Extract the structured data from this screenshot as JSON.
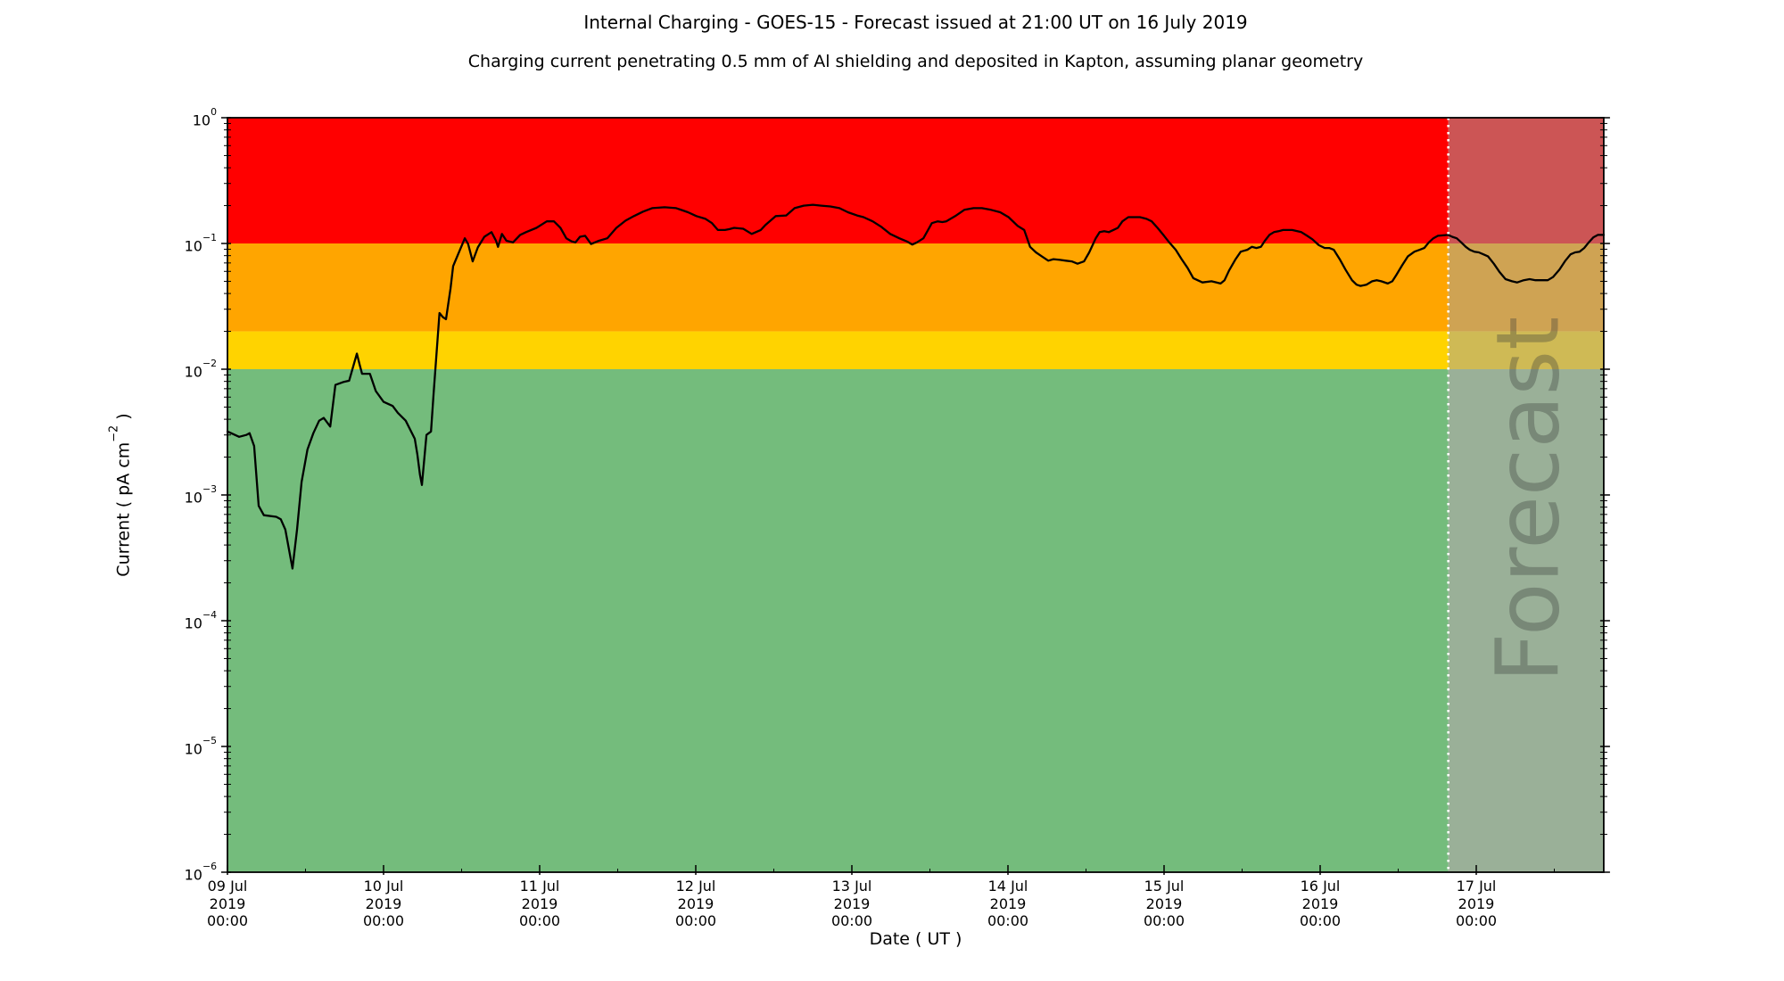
{
  "figure": {
    "title": "Internal Charging - GOES-15 - Forecast issued at 21:00 UT on 16 July 2019",
    "subtitle": "Charging current penetrating 0.5 mm of Al shielding and deposited in Kapton, assuming planar geometry",
    "xlabel": "Date ( UT )",
    "ylabel": {
      "prefix": "Current ( pA cm",
      "exponent": "−2",
      "suffix": " )"
    }
  },
  "axes": {
    "x_tick_labels": [
      {
        "day": "09 Jul",
        "year": "2019",
        "time": "00:00"
      },
      {
        "day": "10 Jul",
        "year": "2019",
        "time": "00:00"
      },
      {
        "day": "11 Jul",
        "year": "2019",
        "time": "00:00"
      },
      {
        "day": "12 Jul",
        "year": "2019",
        "time": "00:00"
      },
      {
        "day": "13 Jul",
        "year": "2019",
        "time": "00:00"
      },
      {
        "day": "14 Jul",
        "year": "2019",
        "time": "00:00"
      },
      {
        "day": "15 Jul",
        "year": "2019",
        "time": "00:00"
      },
      {
        "day": "16 Jul",
        "year": "2019",
        "time": "00:00"
      },
      {
        "day": "17 Jul",
        "year": "2019",
        "time": "00:00"
      }
    ],
    "y_tick_exponents": [
      0,
      -1,
      -2,
      -3,
      -4,
      -5,
      -6
    ]
  },
  "forecast": {
    "label": "Forecast",
    "start_hours": 187.7,
    "boundary_line_color": "#ffffff",
    "text_color": "rgba(55,60,55,0.34)"
  },
  "colors": {
    "background": "#ffffff",
    "axis": "#000000",
    "line": "#000000",
    "bands": {
      "red": "#ff0000",
      "orange": "#ffa500",
      "yellow": "#ffd300",
      "green": "#74bc7c"
    },
    "forecast_bands": {
      "red": "#cc5555",
      "orange": "#cfa353",
      "yellow": "#cfba55",
      "green": "#9ab098"
    }
  },
  "chart_data": {
    "type": "line",
    "title": "Internal Charging - GOES-15 - Forecast issued at 21:00 UT on 16 July 2019",
    "subtitle": "Charging current penetrating 0.5 mm of Al shielding and deposited in Kapton, assuming planar geometry",
    "xlabel": "Date ( UT )",
    "ylabel": "Current ( pA cm^-2 )",
    "x_unit": "hours since 09 Jul 2019 00:00 UT",
    "xlim": [
      0,
      211.6
    ],
    "y_scale": "log",
    "ylim": [
      1e-06,
      1
    ],
    "grid": false,
    "legend": false,
    "bands": [
      {
        "key": "red",
        "label": "red alert level",
        "vmin": 0.1,
        "vmax": 1
      },
      {
        "key": "orange",
        "label": "orange alert level",
        "vmin": 0.02,
        "vmax": 0.1
      },
      {
        "key": "yellow",
        "label": "yellow alert level",
        "vmin": 0.01,
        "vmax": 0.02
      },
      {
        "key": "green",
        "label": "quiet level",
        "vmin": 1e-06,
        "vmax": 0.01
      }
    ],
    "forecast_start": 187.7,
    "series": [
      {
        "name": "charging current",
        "points": [
          [
            0,
            0.0032
          ],
          [
            1.8,
            0.0029
          ],
          [
            2.9,
            0.003
          ],
          [
            3.4,
            0.0031
          ],
          [
            4.1,
            0.00245
          ],
          [
            4.8,
            0.00082
          ],
          [
            5.6,
            0.00069
          ],
          [
            7.5,
            0.00067
          ],
          [
            8.2,
            0.00064
          ],
          [
            8.9,
            0.00053
          ],
          [
            10,
            0.00026
          ],
          [
            10.7,
            0.00053
          ],
          [
            11.4,
            0.00127
          ],
          [
            12.3,
            0.0023
          ],
          [
            13.2,
            0.0031
          ],
          [
            14.1,
            0.0039
          ],
          [
            14.8,
            0.0041
          ],
          [
            15.8,
            0.0035
          ],
          [
            16.6,
            0.0075
          ],
          [
            17.8,
            0.0079
          ],
          [
            18.7,
            0.0081
          ],
          [
            19.9,
            0.0133
          ],
          [
            20.3,
            0.011
          ],
          [
            20.7,
            0.0092
          ],
          [
            21.9,
            0.0092
          ],
          [
            22.8,
            0.0067
          ],
          [
            24,
            0.0055
          ],
          [
            25.4,
            0.0051
          ],
          [
            26.2,
            0.0045
          ],
          [
            27.4,
            0.0039
          ],
          [
            28.8,
            0.0028
          ],
          [
            29.2,
            0.0021
          ],
          [
            29.6,
            0.00145
          ],
          [
            29.9,
            0.0012
          ],
          [
            30.6,
            0.003
          ],
          [
            31.3,
            0.0032
          ],
          [
            31.7,
            0.0064
          ],
          [
            32.6,
            0.028
          ],
          [
            33.1,
            0.026
          ],
          [
            33.6,
            0.025
          ],
          [
            34.3,
            0.044
          ],
          [
            34.7,
            0.066
          ],
          [
            36.5,
            0.11
          ],
          [
            37,
            0.099
          ],
          [
            37.7,
            0.072
          ],
          [
            38.5,
            0.093
          ],
          [
            39.5,
            0.113
          ],
          [
            40.6,
            0.123
          ],
          [
            41.3,
            0.105
          ],
          [
            41.6,
            0.094
          ],
          [
            42.2,
            0.119
          ],
          [
            42.9,
            0.105
          ],
          [
            43.9,
            0.102
          ],
          [
            45,
            0.117
          ],
          [
            45.9,
            0.123
          ],
          [
            47.5,
            0.133
          ],
          [
            49.1,
            0.15
          ],
          [
            50.2,
            0.15
          ],
          [
            51.2,
            0.133
          ],
          [
            52.1,
            0.11
          ],
          [
            52.9,
            0.104
          ],
          [
            53.5,
            0.102
          ],
          [
            54.2,
            0.113
          ],
          [
            55,
            0.115
          ],
          [
            55.9,
            0.099
          ],
          [
            57.1,
            0.105
          ],
          [
            58.4,
            0.11
          ],
          [
            59.8,
            0.133
          ],
          [
            61.2,
            0.152
          ],
          [
            62.5,
            0.165
          ],
          [
            63.9,
            0.179
          ],
          [
            65.3,
            0.191
          ],
          [
            67.2,
            0.194
          ],
          [
            69,
            0.191
          ],
          [
            70.8,
            0.177
          ],
          [
            72.1,
            0.165
          ],
          [
            73.5,
            0.157
          ],
          [
            74.5,
            0.145
          ],
          [
            75.4,
            0.128
          ],
          [
            76.5,
            0.128
          ],
          [
            77.2,
            0.13
          ],
          [
            77.9,
            0.133
          ],
          [
            79.3,
            0.131
          ],
          [
            80.6,
            0.119
          ],
          [
            82,
            0.128
          ],
          [
            82.7,
            0.14
          ],
          [
            84.3,
            0.165
          ],
          [
            85.9,
            0.167
          ],
          [
            87.2,
            0.191
          ],
          [
            88.6,
            0.2
          ],
          [
            90,
            0.203
          ],
          [
            91.3,
            0.2
          ],
          [
            92.7,
            0.197
          ],
          [
            94.1,
            0.191
          ],
          [
            95.4,
            0.177
          ],
          [
            96.8,
            0.167
          ],
          [
            97.8,
            0.162
          ],
          [
            99.2,
            0.15
          ],
          [
            100.5,
            0.136
          ],
          [
            101.9,
            0.119
          ],
          [
            103.3,
            0.11
          ],
          [
            104.6,
            0.103
          ],
          [
            105.3,
            0.098
          ],
          [
            106,
            0.102
          ],
          [
            107,
            0.11
          ],
          [
            108.3,
            0.145
          ],
          [
            109.2,
            0.15
          ],
          [
            109.9,
            0.148
          ],
          [
            110.5,
            0.15
          ],
          [
            111.9,
            0.165
          ],
          [
            113.3,
            0.185
          ],
          [
            114.7,
            0.191
          ],
          [
            116,
            0.191
          ],
          [
            117.4,
            0.185
          ],
          [
            118.8,
            0.177
          ],
          [
            120.1,
            0.162
          ],
          [
            121.5,
            0.138
          ],
          [
            122.5,
            0.128
          ],
          [
            123.4,
            0.094
          ],
          [
            124.3,
            0.085
          ],
          [
            125.2,
            0.079
          ],
          [
            126.2,
            0.073
          ],
          [
            127,
            0.075
          ],
          [
            128,
            0.074
          ],
          [
            128.9,
            0.073
          ],
          [
            129.8,
            0.072
          ],
          [
            130.7,
            0.069
          ],
          [
            131.7,
            0.072
          ],
          [
            132.5,
            0.085
          ],
          [
            133.5,
            0.11
          ],
          [
            134.1,
            0.123
          ],
          [
            134.8,
            0.125
          ],
          [
            135.5,
            0.123
          ],
          [
            136.2,
            0.128
          ],
          [
            136.9,
            0.133
          ],
          [
            137.6,
            0.15
          ],
          [
            138.5,
            0.162
          ],
          [
            139.4,
            0.162
          ],
          [
            140.3,
            0.162
          ],
          [
            141.3,
            0.157
          ],
          [
            142.1,
            0.15
          ],
          [
            143,
            0.133
          ],
          [
            144,
            0.115
          ],
          [
            144.8,
            0.102
          ],
          [
            145.8,
            0.089
          ],
          [
            146.7,
            0.075
          ],
          [
            147.6,
            0.064
          ],
          [
            148.5,
            0.053
          ],
          [
            149.9,
            0.049
          ],
          [
            151.3,
            0.05
          ],
          [
            152.7,
            0.048
          ],
          [
            153.3,
            0.051
          ],
          [
            154,
            0.061
          ],
          [
            155,
            0.075
          ],
          [
            155.8,
            0.086
          ],
          [
            156.8,
            0.089
          ],
          [
            157.5,
            0.094
          ],
          [
            158.2,
            0.092
          ],
          [
            158.9,
            0.094
          ],
          [
            159.5,
            0.105
          ],
          [
            160.2,
            0.117
          ],
          [
            160.9,
            0.123
          ],
          [
            161.6,
            0.125
          ],
          [
            162.3,
            0.128
          ],
          [
            163.7,
            0.128
          ],
          [
            165.1,
            0.123
          ],
          [
            166,
            0.115
          ],
          [
            166.8,
            0.108
          ],
          [
            167.8,
            0.097
          ],
          [
            168.7,
            0.092
          ],
          [
            169.4,
            0.092
          ],
          [
            170.1,
            0.089
          ],
          [
            171,
            0.075
          ],
          [
            171.9,
            0.062
          ],
          [
            172.9,
            0.051
          ],
          [
            173.6,
            0.047
          ],
          [
            174.2,
            0.046
          ],
          [
            175.1,
            0.047
          ],
          [
            176,
            0.05
          ],
          [
            176.7,
            0.051
          ],
          [
            177.4,
            0.05
          ],
          [
            178.4,
            0.048
          ],
          [
            179.1,
            0.05
          ],
          [
            179.7,
            0.056
          ],
          [
            180.6,
            0.067
          ],
          [
            181.5,
            0.079
          ],
          [
            182.5,
            0.086
          ],
          [
            183.3,
            0.089
          ],
          [
            184,
            0.092
          ],
          [
            184.7,
            0.102
          ],
          [
            185.4,
            0.11
          ],
          [
            186.1,
            0.115
          ],
          [
            187.7,
            0.117
          ],
          [
            188.3,
            0.113
          ],
          [
            189,
            0.11
          ],
          [
            189.7,
            0.102
          ],
          [
            190.4,
            0.094
          ],
          [
            191,
            0.089
          ],
          [
            191.7,
            0.086
          ],
          [
            192.4,
            0.085
          ],
          [
            193.1,
            0.082
          ],
          [
            193.8,
            0.079
          ],
          [
            194.7,
            0.069
          ],
          [
            195.6,
            0.059
          ],
          [
            196.5,
            0.052
          ],
          [
            197.5,
            0.05
          ],
          [
            198.3,
            0.049
          ],
          [
            199.3,
            0.051
          ],
          [
            200.2,
            0.052
          ],
          [
            201.1,
            0.051
          ],
          [
            202,
            0.051
          ],
          [
            203,
            0.051
          ],
          [
            203.8,
            0.054
          ],
          [
            204.8,
            0.062
          ],
          [
            205.7,
            0.073
          ],
          [
            206.5,
            0.082
          ],
          [
            207.2,
            0.085
          ],
          [
            207.9,
            0.086
          ],
          [
            208.6,
            0.092
          ],
          [
            209.3,
            0.102
          ],
          [
            210,
            0.112
          ],
          [
            210.7,
            0.117
          ],
          [
            211.6,
            0.117
          ]
        ]
      }
    ]
  }
}
